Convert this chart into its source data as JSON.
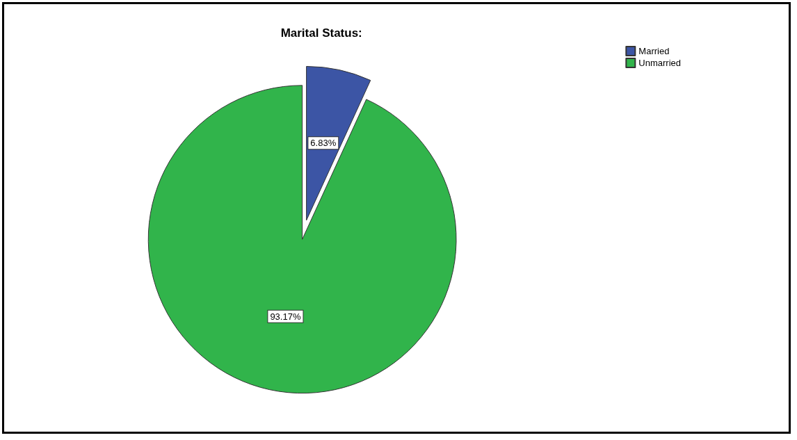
{
  "chart_data": {
    "type": "pie",
    "title": "Marital Status:",
    "categories": [
      "Married",
      "Unmarried"
    ],
    "values": [
      6.83,
      93.17
    ],
    "colors": [
      "#3c55a5",
      "#31b44b"
    ],
    "value_labels": [
      "6.83%",
      "93.17%"
    ],
    "legend": "top right"
  }
}
